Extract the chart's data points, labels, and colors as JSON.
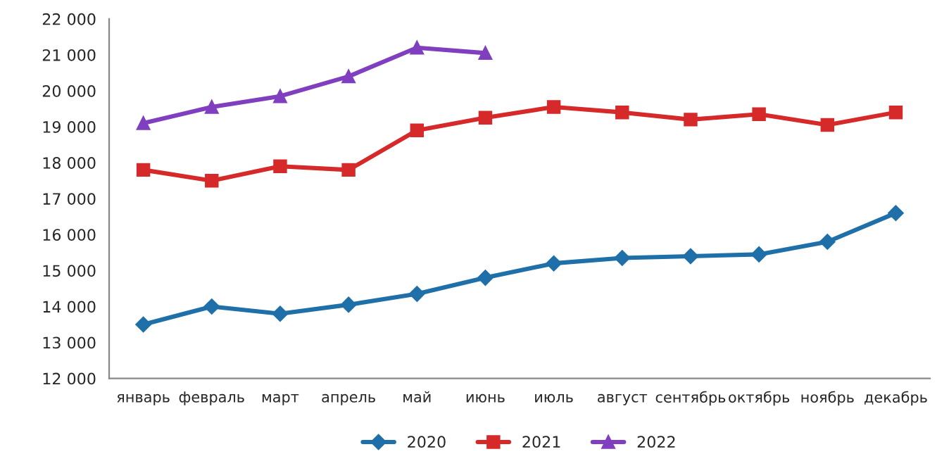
{
  "chart_data": {
    "type": "line",
    "categories": [
      "январь",
      "февраль",
      "март",
      "апрель",
      "май",
      "июнь",
      "июль",
      "август",
      "сентябрь",
      "октябрь",
      "ноябрь",
      "декабрь"
    ],
    "series": [
      {
        "name": "2020",
        "color": "#1f6fa8",
        "marker": "diamond",
        "values": [
          13500,
          14000,
          13800,
          14050,
          14350,
          14800,
          15200,
          15350,
          15400,
          15450,
          15800,
          16600
        ]
      },
      {
        "name": "2021",
        "color": "#d62a2a",
        "marker": "square",
        "values": [
          17800,
          17500,
          17900,
          17800,
          18900,
          19250,
          19550,
          19400,
          19200,
          19350,
          19050,
          19400
        ]
      },
      {
        "name": "2022",
        "color": "#7f3fbf",
        "marker": "triangle",
        "values": [
          19100,
          19550,
          19850,
          20400,
          21200,
          21050,
          null,
          null,
          null,
          null,
          null,
          null
        ]
      }
    ],
    "ylim": [
      12000,
      22000
    ],
    "yticks": [
      {
        "value": 12000,
        "label": "12 000"
      },
      {
        "value": 13000,
        "label": "13 000"
      },
      {
        "value": 14000,
        "label": "14 000"
      },
      {
        "value": 15000,
        "label": "15 000"
      },
      {
        "value": 16000,
        "label": "16 000"
      },
      {
        "value": 17000,
        "label": "17 000"
      },
      {
        "value": 18000,
        "label": "18 000"
      },
      {
        "value": 19000,
        "label": "19 000"
      },
      {
        "value": 20000,
        "label": "20 000"
      },
      {
        "value": 21000,
        "label": "21 000"
      },
      {
        "value": 22000,
        "label": "22 000"
      }
    ],
    "grid": false,
    "legend": "bottom",
    "line_style": "solid"
  }
}
